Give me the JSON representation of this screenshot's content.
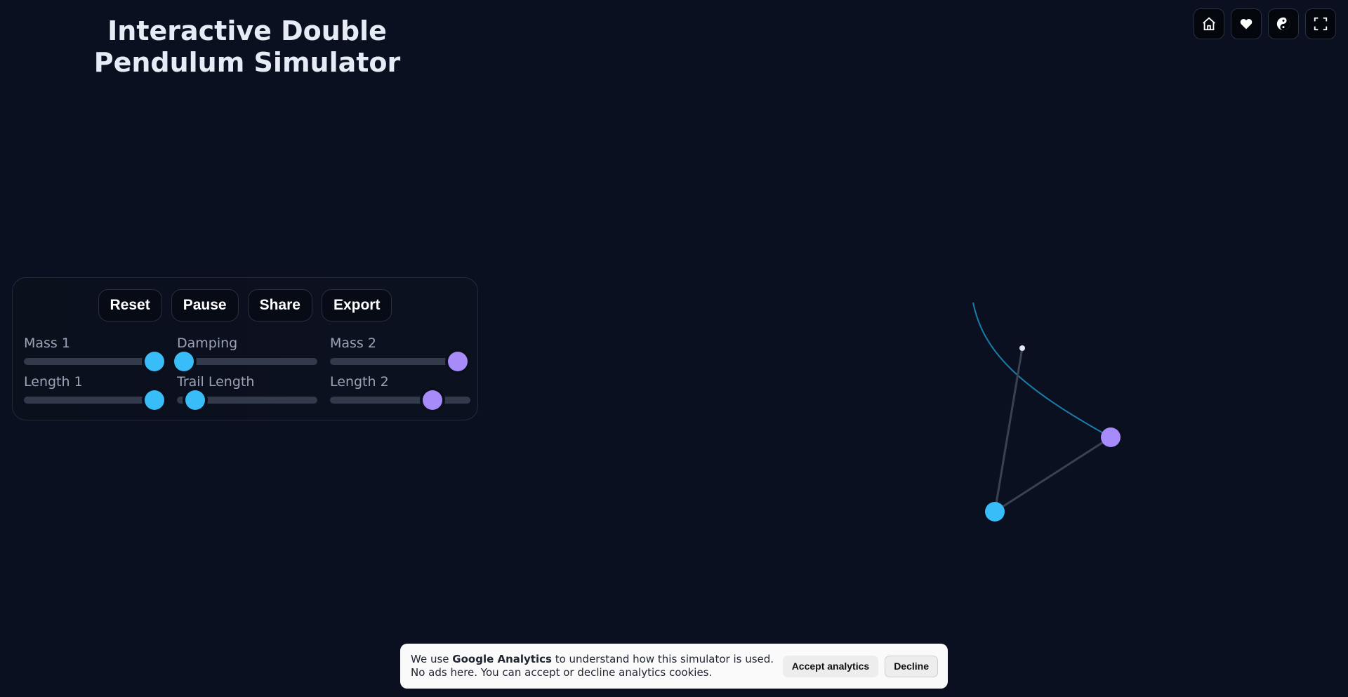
{
  "title": "Interactive Double Pendulum Simulator",
  "buttons": {
    "reset": "Reset",
    "pause": "Pause",
    "share": "Share",
    "export": "Export"
  },
  "sliders": [
    {
      "label": "Mass 1",
      "value": 0.93,
      "color": "#38bdf8"
    },
    {
      "label": "Damping",
      "value": 0.05,
      "color": "#38bdf8"
    },
    {
      "label": "Mass 2",
      "value": 0.91,
      "color": "#a78bfa"
    },
    {
      "label": "Length 1",
      "value": 0.93,
      "color": "#38bdf8"
    },
    {
      "label": "Trail Length",
      "value": 0.13,
      "color": "#38bdf8"
    },
    {
      "label": "Length 2",
      "value": 0.73,
      "color": "#a78bfa"
    }
  ],
  "top_icons": [
    "home-icon",
    "heart-icon",
    "yin-yang-icon",
    "fullscreen-icon"
  ],
  "cookie": {
    "pre": "We use ",
    "bold": "Google Analytics",
    "post": " to understand how this simulator is used. No ads here. You can accept or decline analytics cookies.",
    "accept": "Accept analytics",
    "decline": "Decline"
  },
  "colors": {
    "background": "#0a1020",
    "bob1": "#38bdf8",
    "bob2": "#a78bfa",
    "trail": "#38bdf8"
  }
}
